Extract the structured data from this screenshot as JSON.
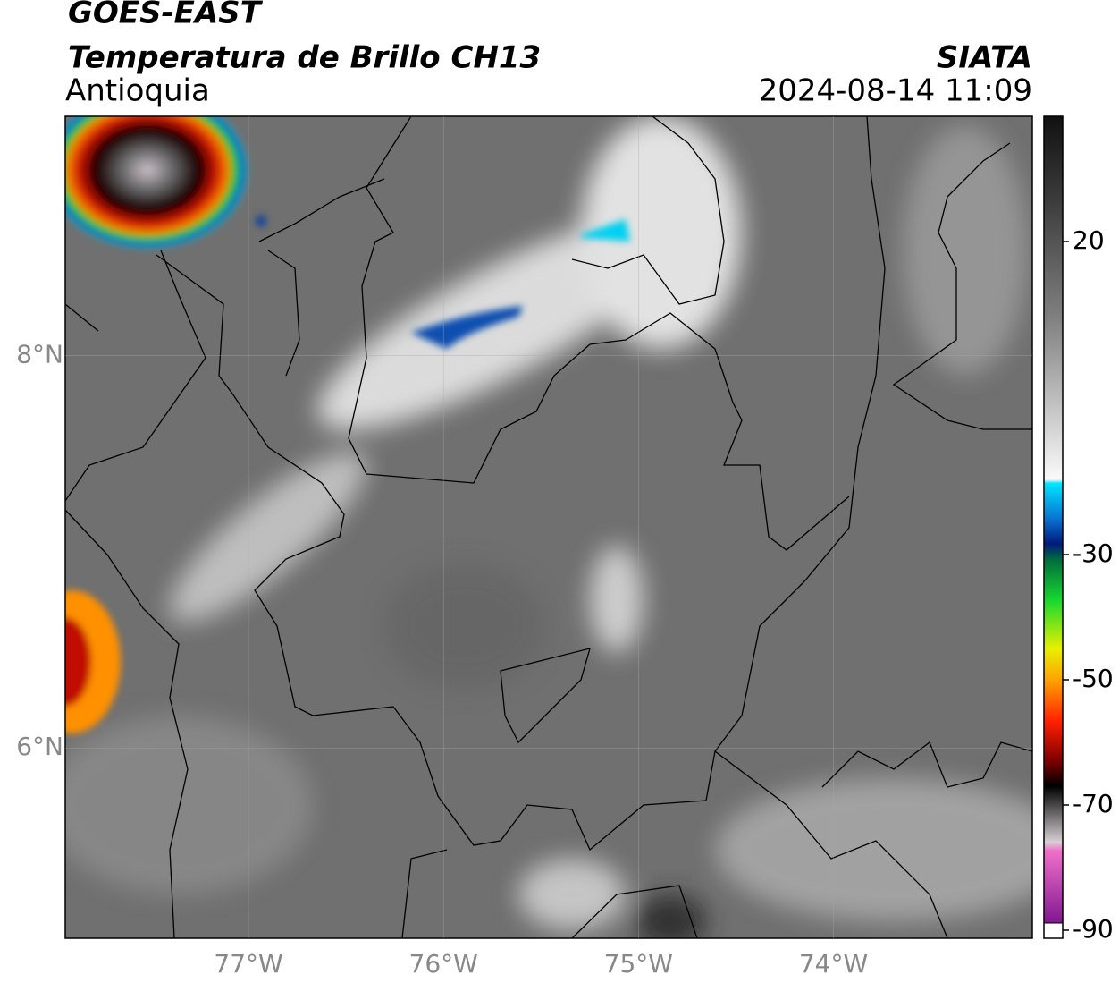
{
  "header": {
    "title": "GOES-EAST",
    "subtitle": "Temperatura de Brillo CH13",
    "region": "Antioquia",
    "source": "SIATA",
    "datetime": "2024-08-14 11:09"
  },
  "map": {
    "xlim": [
      -77.94,
      -72.98
    ],
    "ylim": [
      5.03,
      9.22
    ],
    "xticks": [
      {
        "value": -77,
        "label": "77°W"
      },
      {
        "value": -76,
        "label": "76°W"
      },
      {
        "value": -75,
        "label": "75°W"
      },
      {
        "value": -74,
        "label": "74°W"
      }
    ],
    "yticks": [
      {
        "value": 8,
        "label": "8°N"
      },
      {
        "value": 6,
        "label": "6°N"
      }
    ]
  },
  "colorbar": {
    "lim": [
      -90,
      40
    ],
    "ticks": [
      20,
      -30,
      -50,
      -70,
      -90
    ]
  }
}
